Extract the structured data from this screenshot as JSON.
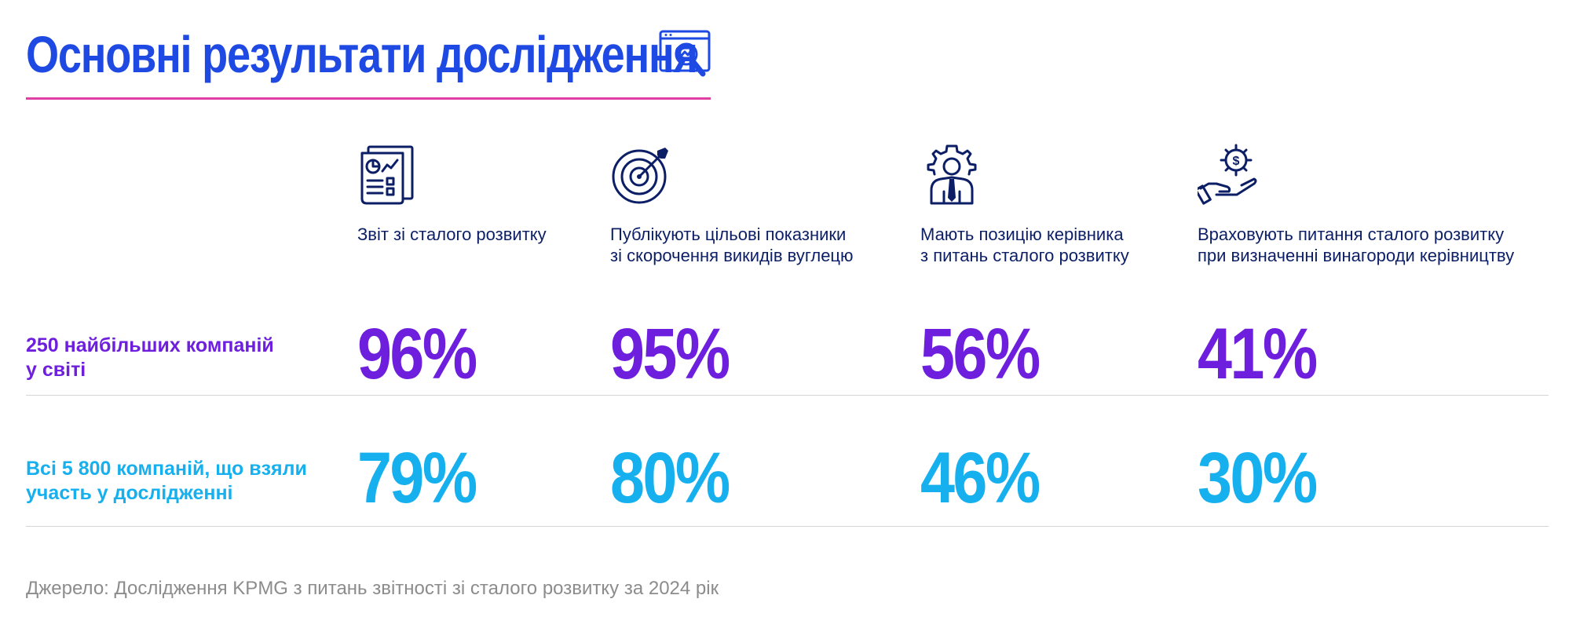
{
  "header": {
    "title": "Основні результати дослідження",
    "icon": "chart-magnifier-icon",
    "accent_color": "#1e49e2",
    "underline_color": "#e23fa4"
  },
  "columns": [
    {
      "label": "Звіт зі сталого розвитку",
      "icon": "report-document-icon"
    },
    {
      "label": "Публікують цільові показники\nзі скорочення викидів вуглецю",
      "icon": "target-arrow-icon"
    },
    {
      "label": "Мають позицію керівника\nз питань сталого розвитку",
      "icon": "manager-gear-icon"
    },
    {
      "label": "Враховують питання сталого розвитку\nпри визначенні винагороди керівництву",
      "icon": "hand-coin-gear-icon"
    }
  ],
  "rows": [
    {
      "label": "250 найбільших компаній\nу світі",
      "color": "#6e1fdd",
      "values": [
        "96%",
        "95%",
        "56%",
        "41%"
      ]
    },
    {
      "label": "Всі 5 800 компаній, що взяли\nучасть у дослідженні",
      "color": "#16b0ee",
      "values": [
        "79%",
        "80%",
        "46%",
        "30%"
      ]
    }
  ],
  "source": "Джерело: Дослідження KPMG з питань звітності зі сталого розвитку за 2024 рік"
}
